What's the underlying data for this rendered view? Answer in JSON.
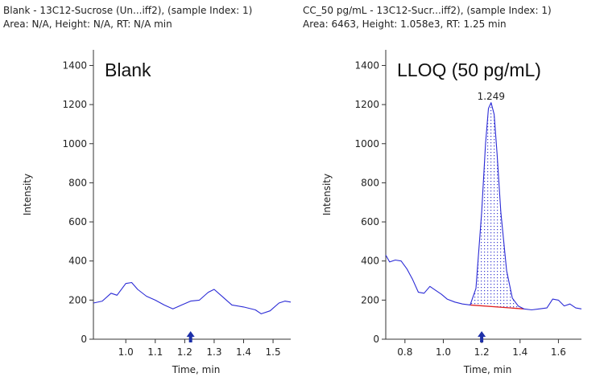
{
  "panels": [
    {
      "id": "left",
      "header_line1": "Blank - 13C12-Sucrose (Un...iff2), (sample Index: 1)",
      "header_line2": "Area: N/A, Height: N/A, RT: N/A min",
      "chart_label": "Blank"
    },
    {
      "id": "right",
      "header_line1": "CC_50 pg/mL - 13C12-Sucr...iff2), (sample Index: 1)",
      "header_line2": "Area: 6463, Height: 1.058e3, RT: 1.25 min",
      "chart_label": "LLOQ (50 pg/mL)"
    }
  ],
  "colors": {
    "trace": "#2b2bd6",
    "baseline": "#e02020",
    "fill_dots": "#3a3ad0",
    "axis": "#333333",
    "marker": "#1d2fa8"
  },
  "chart_data": [
    {
      "type": "line",
      "title": "Blank",
      "xlabel": "Time, min",
      "ylabel": "Intensity",
      "xlim": [
        0.89,
        1.56
      ],
      "ylim": [
        0,
        1480
      ],
      "xticks": [
        "1.0",
        "1.1",
        "1.2",
        "1.3",
        "1.4",
        "1.5"
      ],
      "yticks": [
        "0",
        "200",
        "400",
        "600",
        "800",
        "1000",
        "1200",
        "1400"
      ],
      "grid": false,
      "marker_x": 1.22,
      "series": [
        {
          "x": [
            0.89,
            0.92,
            0.95,
            0.97,
            1.0,
            1.02,
            1.04,
            1.07,
            1.1,
            1.13,
            1.16,
            1.19,
            1.22,
            1.25,
            1.28,
            1.3,
            1.33,
            1.36,
            1.4,
            1.44,
            1.46,
            1.49,
            1.52,
            1.54,
            1.56
          ],
          "y": [
            185,
            195,
            235,
            225,
            285,
            290,
            255,
            220,
            200,
            175,
            155,
            175,
            195,
            200,
            240,
            255,
            215,
            175,
            165,
            150,
            130,
            145,
            185,
            195,
            190
          ]
        }
      ]
    },
    {
      "type": "line",
      "title": "LLOQ (50 pg/mL)",
      "xlabel": "Time, min",
      "ylabel": "Intensity",
      "xlim": [
        0.7,
        1.72
      ],
      "ylim": [
        0,
        1480
      ],
      "xticks": [
        "0.8",
        "1.0",
        "1.2",
        "1.4",
        "1.6"
      ],
      "yticks": [
        "0",
        "200",
        "400",
        "600",
        "800",
        "1000",
        "1200",
        "1400"
      ],
      "grid": false,
      "marker_x": 1.2,
      "peak_label": "1.249",
      "peak_x": 1.249,
      "integration_start": 1.14,
      "integration_end": 1.42,
      "series": [
        {
          "x": [
            0.7,
            0.72,
            0.75,
            0.78,
            0.81,
            0.84,
            0.87,
            0.9,
            0.93,
            0.96,
            0.99,
            1.02,
            1.06,
            1.1,
            1.14,
            1.17,
            1.2,
            1.22,
            1.235,
            1.249,
            1.265,
            1.28,
            1.3,
            1.33,
            1.36,
            1.39,
            1.42,
            1.46,
            1.5,
            1.54,
            1.57,
            1.6,
            1.63,
            1.66,
            1.69,
            1.72
          ],
          "y": [
            430,
            395,
            405,
            400,
            360,
            305,
            240,
            235,
            270,
            250,
            230,
            205,
            190,
            180,
            175,
            260,
            650,
            1000,
            1180,
            1210,
            1150,
            950,
            650,
            350,
            210,
            170,
            155,
            150,
            155,
            160,
            205,
            200,
            170,
            180,
            160,
            155
          ]
        }
      ]
    }
  ]
}
